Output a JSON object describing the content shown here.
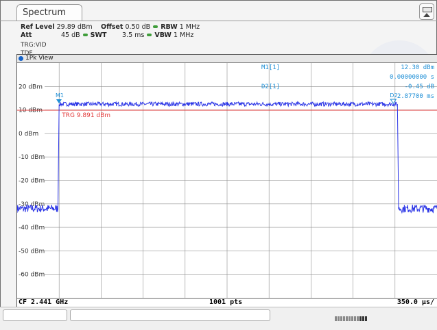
{
  "tab": {
    "label": "Spectrum"
  },
  "params": {
    "ref_level_label": "Ref Level",
    "ref_level_value": "29.89 dBm",
    "offset_label": "Offset",
    "offset_value": "0.50 dB",
    "rbw_label": "RBW",
    "rbw_value": "1 MHz",
    "att_label": "Att",
    "att_value": "45 dB",
    "swt_label": "SWT",
    "swt_value": "3.5 ms",
    "vbw_label": "VBW",
    "vbw_value": "1 MHz",
    "trigger": "TRG:VID TDF"
  },
  "window": {
    "title": "1Pk View"
  },
  "markers": {
    "m1_label": "M1[1]",
    "m1_value1": "12.30 dBm",
    "m1_value2": "0.00000000 s",
    "d2_label": "D2[1]",
    "d2_value1": "-0.45 dB",
    "d2_value2": "2.87700 ms",
    "trg_line_label": "TRG 9.891 dBm",
    "m1_tag": "M1",
    "d2_tag": "D2"
  },
  "footer": {
    "cf": "CF 2.441 GHz",
    "pts": "1001 pts",
    "span": "350.0 µs/"
  },
  "colors": {
    "trace": "#2a34e6",
    "marker": "#1e8fd6",
    "trigger": "#e23b3b",
    "grid": "#8c8c8c"
  },
  "chart_data": {
    "type": "line",
    "xlim": [
      0,
      3500
    ],
    "ylim": [
      -70,
      30
    ],
    "y_ticks": [
      "20 dBm",
      "10 dBm",
      "0 dBm",
      "-10 dBm",
      "-20 dBm",
      "-30 dBm",
      "-40 dBm",
      "-50 dBm",
      "-60 dBm"
    ],
    "y_tick_values": [
      20,
      10,
      0,
      -10,
      -20,
      -30,
      -40,
      -50,
      -60
    ],
    "trigger_level": 9.891,
    "series": [
      {
        "x": [
          0,
          340,
          350,
          360,
          3160,
          3170,
          3180,
          3500
        ],
        "y": [
          -32,
          -32,
          12.5,
          12.5,
          12.5,
          12.5,
          -32,
          -32
        ]
      }
    ]
  }
}
